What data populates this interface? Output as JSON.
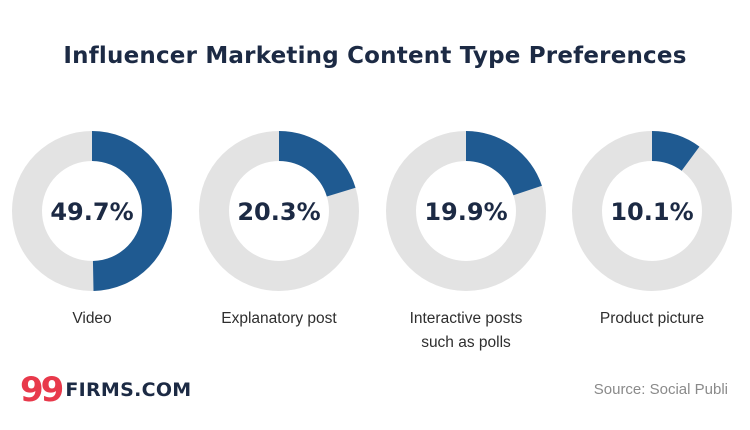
{
  "chart_data": {
    "type": "pie",
    "title": "Influencer Marketing Content Type Preferences",
    "categories": [
      "Video",
      "Explanatory post",
      "Interactive posts\nsuch as polls",
      "Product picture"
    ],
    "values": [
      49.7,
      20.3,
      19.9,
      10.1
    ],
    "value_labels": [
      "49.7%",
      "20.3%",
      "19.9%",
      "10.1%"
    ],
    "unit": "%",
    "colors": {
      "filled": "#1f5a91",
      "track": "#e3e3e3"
    }
  },
  "branding": {
    "logo_mark": "99",
    "logo_text": "FIRMS.COM"
  },
  "source": "Source: Social Publi"
}
